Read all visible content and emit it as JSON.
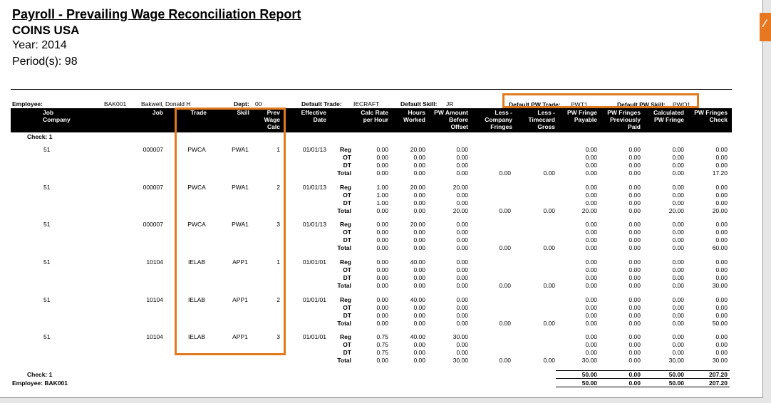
{
  "report": {
    "title": "Payroll - Prevailing Wage Reconciliation Report",
    "company": "COINS USA",
    "year": "Year: 2014",
    "periods": "Period(s): 98"
  },
  "corner_icon": "report-tab-icon",
  "highlight_color": "#e07a1c",
  "employee_info": {
    "employee_label": "Employee:",
    "employee_code": "BAK001",
    "employee_name": "Bakwell, Donald H",
    "dept_label": "Dept:",
    "dept_value": "00",
    "default_trade_label": "Default Trade:",
    "default_trade_value": "IECRAFT",
    "default_skill_label": "Default Skill:",
    "default_skill_value": "JR",
    "default_pw_trade_label": "Default PW Trade:",
    "default_pw_trade_value": "PWT1",
    "default_pw_skill_label": "Default PW Skill:",
    "default_pw_skill_value": "PWO1"
  },
  "columns": [
    "Job\nCompany",
    "Job",
    "Trade",
    "Skill",
    "Prev\nWage\nCalc",
    "Effective\nDate",
    "Calc Rate\nper Hour",
    "Hours\nWorked",
    "PW Amount\nBefore\nOffset",
    "Less -\nCompany\nFringes",
    "Less -\nTimecard\nGross",
    "PW Fringe\nPayable",
    "PW Fringes\nPreviously\nPaid",
    "Calculated\nPW Fringe",
    "PW Fringes\nCheck"
  ],
  "check_label": "Check: 1",
  "line_types": [
    "Reg",
    "OT",
    "DT",
    "Total"
  ],
  "groups": [
    {
      "company": "51",
      "job": "000007",
      "trade": "PWCA",
      "skill": "PWA1",
      "prev_wage_calc": "1",
      "effective_date": "01/01/13",
      "calc_rate": [
        "0.00",
        "0.00",
        "0.00",
        "0.00"
      ],
      "hours": [
        "20.00",
        "0.00",
        "0.00",
        "0.00"
      ],
      "pw_amount": [
        "0.00",
        "0.00",
        "0.00",
        "0.00"
      ],
      "less_company_fringes": "0.00",
      "less_timecard_gross": "0.00",
      "pw_fringe_payable": [
        "0.00",
        "0.00",
        "0.00",
        "0.00"
      ],
      "pw_fringes_prev_paid": [
        "0.00",
        "0.00",
        "0.00",
        "0.00"
      ],
      "calculated_pw_fringe": [
        "0.00",
        "0.00",
        "0.00",
        "0.00"
      ],
      "pw_fringes_check": [
        "0.00",
        "0.00",
        "0.00",
        "17.20"
      ]
    },
    {
      "company": "51",
      "job": "000007",
      "trade": "PWCA",
      "skill": "PWA1",
      "prev_wage_calc": "2",
      "effective_date": "01/01/13",
      "calc_rate": [
        "1.00",
        "1.00",
        "1.00",
        "0.00"
      ],
      "hours": [
        "20.00",
        "0.00",
        "0.00",
        "0.00"
      ],
      "pw_amount": [
        "20.00",
        "0.00",
        "0.00",
        "20.00"
      ],
      "less_company_fringes": "0.00",
      "less_timecard_gross": "0.00",
      "pw_fringe_payable": [
        "0.00",
        "0.00",
        "0.00",
        "20.00"
      ],
      "pw_fringes_prev_paid": [
        "0.00",
        "0.00",
        "0.00",
        "0.00"
      ],
      "calculated_pw_fringe": [
        "0.00",
        "0.00",
        "0.00",
        "20.00"
      ],
      "pw_fringes_check": [
        "0.00",
        "0.00",
        "0.00",
        "20.00"
      ]
    },
    {
      "company": "51",
      "job": "000007",
      "trade": "PWCA",
      "skill": "PWA1",
      "prev_wage_calc": "3",
      "effective_date": "01/01/13",
      "calc_rate": [
        "0.00",
        "0.00",
        "0.00",
        "0.00"
      ],
      "hours": [
        "20.00",
        "0.00",
        "0.00",
        "0.00"
      ],
      "pw_amount": [
        "0.00",
        "0.00",
        "0.00",
        "0.00"
      ],
      "less_company_fringes": "0.00",
      "less_timecard_gross": "0.00",
      "pw_fringe_payable": [
        "0.00",
        "0.00",
        "0.00",
        "0.00"
      ],
      "pw_fringes_prev_paid": [
        "0.00",
        "0.00",
        "0.00",
        "0.00"
      ],
      "calculated_pw_fringe": [
        "0.00",
        "0.00",
        "0.00",
        "0.00"
      ],
      "pw_fringes_check": [
        "0.00",
        "0.00",
        "0.00",
        "60.00"
      ]
    },
    {
      "company": "51",
      "job": "10104",
      "trade": "IELAB",
      "skill": "APP1",
      "prev_wage_calc": "1",
      "effective_date": "01/01/01",
      "calc_rate": [
        "0.00",
        "0.00",
        "0.00",
        "0.00"
      ],
      "hours": [
        "40.00",
        "0.00",
        "0.00",
        "0.00"
      ],
      "pw_amount": [
        "0.00",
        "0.00",
        "0.00",
        "0.00"
      ],
      "less_company_fringes": "0.00",
      "less_timecard_gross": "0.00",
      "pw_fringe_payable": [
        "0.00",
        "0.00",
        "0.00",
        "0.00"
      ],
      "pw_fringes_prev_paid": [
        "0.00",
        "0.00",
        "0.00",
        "0.00"
      ],
      "calculated_pw_fringe": [
        "0.00",
        "0.00",
        "0.00",
        "0.00"
      ],
      "pw_fringes_check": [
        "0.00",
        "0.00",
        "0.00",
        "30.00"
      ]
    },
    {
      "company": "51",
      "job": "10104",
      "trade": "IELAB",
      "skill": "APP1",
      "prev_wage_calc": "2",
      "effective_date": "01/01/01",
      "calc_rate": [
        "0.00",
        "0.00",
        "0.00",
        "0.00"
      ],
      "hours": [
        "40.00",
        "0.00",
        "0.00",
        "0.00"
      ],
      "pw_amount": [
        "0.00",
        "0.00",
        "0.00",
        "0.00"
      ],
      "less_company_fringes": "0.00",
      "less_timecard_gross": "0.00",
      "pw_fringe_payable": [
        "0.00",
        "0.00",
        "0.00",
        "0.00"
      ],
      "pw_fringes_prev_paid": [
        "0.00",
        "0.00",
        "0.00",
        "0.00"
      ],
      "calculated_pw_fringe": [
        "0.00",
        "0.00",
        "0.00",
        "0.00"
      ],
      "pw_fringes_check": [
        "0.00",
        "0.00",
        "0.00",
        "50.00"
      ]
    },
    {
      "company": "51",
      "job": "10104",
      "trade": "IELAB",
      "skill": "APP1",
      "prev_wage_calc": "3",
      "effective_date": "01/01/01",
      "calc_rate": [
        "0.75",
        "0.75",
        "0.75",
        "0.00"
      ],
      "hours": [
        "40.00",
        "0.00",
        "0.00",
        "0.00"
      ],
      "pw_amount": [
        "30.00",
        "0.00",
        "0.00",
        "30.00"
      ],
      "less_company_fringes": "0.00",
      "less_timecard_gross": "0.00",
      "pw_fringe_payable": [
        "0.00",
        "0.00",
        "0.00",
        "30.00"
      ],
      "pw_fringes_prev_paid": [
        "0.00",
        "0.00",
        "0.00",
        "0.00"
      ],
      "calculated_pw_fringe": [
        "0.00",
        "0.00",
        "0.00",
        "30.00"
      ],
      "pw_fringes_check": [
        "0.00",
        "0.00",
        "0.00",
        "30.00"
      ]
    }
  ],
  "totals": {
    "check_label": "Check: 1",
    "employee_label": "Employee: BAK001",
    "check_values": [
      "50.00",
      "0.00",
      "50.00",
      "207.20"
    ],
    "employee_values": [
      "50.00",
      "0.00",
      "50.00",
      "207.20"
    ]
  }
}
